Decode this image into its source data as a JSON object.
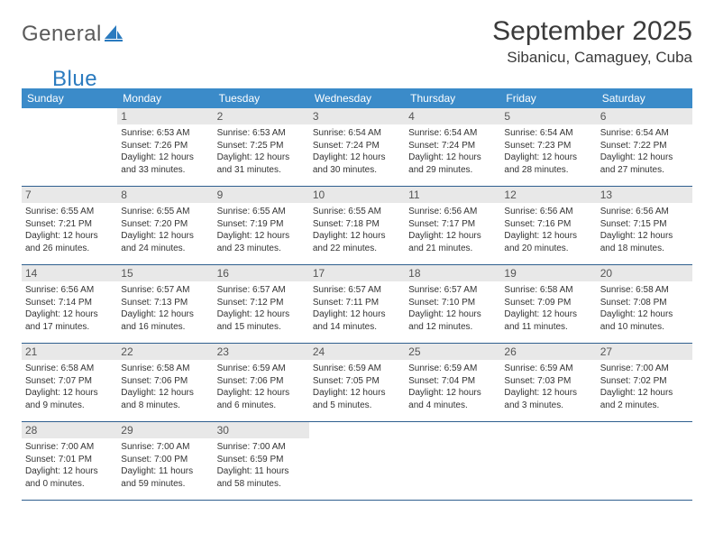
{
  "logo": {
    "general": "General",
    "blue": "Blue"
  },
  "title": "September 2025",
  "location": "Sibanicu, Camaguey, Cuba",
  "colors": {
    "header_bg": "#3b8bc9",
    "header_text": "#ffffff",
    "daynum_bg": "#e8e8e8",
    "daynum_text": "#555555",
    "body_text": "#333333",
    "rule": "#2f5f8f",
    "logo_gray": "#5a5a5a",
    "logo_blue": "#2b7bbf"
  },
  "weekdays": [
    "Sunday",
    "Monday",
    "Tuesday",
    "Wednesday",
    "Thursday",
    "Friday",
    "Saturday"
  ],
  "weeks": [
    [
      null,
      {
        "n": "1",
        "sr": "Sunrise: 6:53 AM",
        "ss": "Sunset: 7:26 PM",
        "d1": "Daylight: 12 hours",
        "d2": "and 33 minutes."
      },
      {
        "n": "2",
        "sr": "Sunrise: 6:53 AM",
        "ss": "Sunset: 7:25 PM",
        "d1": "Daylight: 12 hours",
        "d2": "and 31 minutes."
      },
      {
        "n": "3",
        "sr": "Sunrise: 6:54 AM",
        "ss": "Sunset: 7:24 PM",
        "d1": "Daylight: 12 hours",
        "d2": "and 30 minutes."
      },
      {
        "n": "4",
        "sr": "Sunrise: 6:54 AM",
        "ss": "Sunset: 7:24 PM",
        "d1": "Daylight: 12 hours",
        "d2": "and 29 minutes."
      },
      {
        "n": "5",
        "sr": "Sunrise: 6:54 AM",
        "ss": "Sunset: 7:23 PM",
        "d1": "Daylight: 12 hours",
        "d2": "and 28 minutes."
      },
      {
        "n": "6",
        "sr": "Sunrise: 6:54 AM",
        "ss": "Sunset: 7:22 PM",
        "d1": "Daylight: 12 hours",
        "d2": "and 27 minutes."
      }
    ],
    [
      {
        "n": "7",
        "sr": "Sunrise: 6:55 AM",
        "ss": "Sunset: 7:21 PM",
        "d1": "Daylight: 12 hours",
        "d2": "and 26 minutes."
      },
      {
        "n": "8",
        "sr": "Sunrise: 6:55 AM",
        "ss": "Sunset: 7:20 PM",
        "d1": "Daylight: 12 hours",
        "d2": "and 24 minutes."
      },
      {
        "n": "9",
        "sr": "Sunrise: 6:55 AM",
        "ss": "Sunset: 7:19 PM",
        "d1": "Daylight: 12 hours",
        "d2": "and 23 minutes."
      },
      {
        "n": "10",
        "sr": "Sunrise: 6:55 AM",
        "ss": "Sunset: 7:18 PM",
        "d1": "Daylight: 12 hours",
        "d2": "and 22 minutes."
      },
      {
        "n": "11",
        "sr": "Sunrise: 6:56 AM",
        "ss": "Sunset: 7:17 PM",
        "d1": "Daylight: 12 hours",
        "d2": "and 21 minutes."
      },
      {
        "n": "12",
        "sr": "Sunrise: 6:56 AM",
        "ss": "Sunset: 7:16 PM",
        "d1": "Daylight: 12 hours",
        "d2": "and 20 minutes."
      },
      {
        "n": "13",
        "sr": "Sunrise: 6:56 AM",
        "ss": "Sunset: 7:15 PM",
        "d1": "Daylight: 12 hours",
        "d2": "and 18 minutes."
      }
    ],
    [
      {
        "n": "14",
        "sr": "Sunrise: 6:56 AM",
        "ss": "Sunset: 7:14 PM",
        "d1": "Daylight: 12 hours",
        "d2": "and 17 minutes."
      },
      {
        "n": "15",
        "sr": "Sunrise: 6:57 AM",
        "ss": "Sunset: 7:13 PM",
        "d1": "Daylight: 12 hours",
        "d2": "and 16 minutes."
      },
      {
        "n": "16",
        "sr": "Sunrise: 6:57 AM",
        "ss": "Sunset: 7:12 PM",
        "d1": "Daylight: 12 hours",
        "d2": "and 15 minutes."
      },
      {
        "n": "17",
        "sr": "Sunrise: 6:57 AM",
        "ss": "Sunset: 7:11 PM",
        "d1": "Daylight: 12 hours",
        "d2": "and 14 minutes."
      },
      {
        "n": "18",
        "sr": "Sunrise: 6:57 AM",
        "ss": "Sunset: 7:10 PM",
        "d1": "Daylight: 12 hours",
        "d2": "and 12 minutes."
      },
      {
        "n": "19",
        "sr": "Sunrise: 6:58 AM",
        "ss": "Sunset: 7:09 PM",
        "d1": "Daylight: 12 hours",
        "d2": "and 11 minutes."
      },
      {
        "n": "20",
        "sr": "Sunrise: 6:58 AM",
        "ss": "Sunset: 7:08 PM",
        "d1": "Daylight: 12 hours",
        "d2": "and 10 minutes."
      }
    ],
    [
      {
        "n": "21",
        "sr": "Sunrise: 6:58 AM",
        "ss": "Sunset: 7:07 PM",
        "d1": "Daylight: 12 hours",
        "d2": "and 9 minutes."
      },
      {
        "n": "22",
        "sr": "Sunrise: 6:58 AM",
        "ss": "Sunset: 7:06 PM",
        "d1": "Daylight: 12 hours",
        "d2": "and 8 minutes."
      },
      {
        "n": "23",
        "sr": "Sunrise: 6:59 AM",
        "ss": "Sunset: 7:06 PM",
        "d1": "Daylight: 12 hours",
        "d2": "and 6 minutes."
      },
      {
        "n": "24",
        "sr": "Sunrise: 6:59 AM",
        "ss": "Sunset: 7:05 PM",
        "d1": "Daylight: 12 hours",
        "d2": "and 5 minutes."
      },
      {
        "n": "25",
        "sr": "Sunrise: 6:59 AM",
        "ss": "Sunset: 7:04 PM",
        "d1": "Daylight: 12 hours",
        "d2": "and 4 minutes."
      },
      {
        "n": "26",
        "sr": "Sunrise: 6:59 AM",
        "ss": "Sunset: 7:03 PM",
        "d1": "Daylight: 12 hours",
        "d2": "and 3 minutes."
      },
      {
        "n": "27",
        "sr": "Sunrise: 7:00 AM",
        "ss": "Sunset: 7:02 PM",
        "d1": "Daylight: 12 hours",
        "d2": "and 2 minutes."
      }
    ],
    [
      {
        "n": "28",
        "sr": "Sunrise: 7:00 AM",
        "ss": "Sunset: 7:01 PM",
        "d1": "Daylight: 12 hours",
        "d2": "and 0 minutes."
      },
      {
        "n": "29",
        "sr": "Sunrise: 7:00 AM",
        "ss": "Sunset: 7:00 PM",
        "d1": "Daylight: 11 hours",
        "d2": "and 59 minutes."
      },
      {
        "n": "30",
        "sr": "Sunrise: 7:00 AM",
        "ss": "Sunset: 6:59 PM",
        "d1": "Daylight: 11 hours",
        "d2": "and 58 minutes."
      },
      null,
      null,
      null,
      null
    ]
  ]
}
